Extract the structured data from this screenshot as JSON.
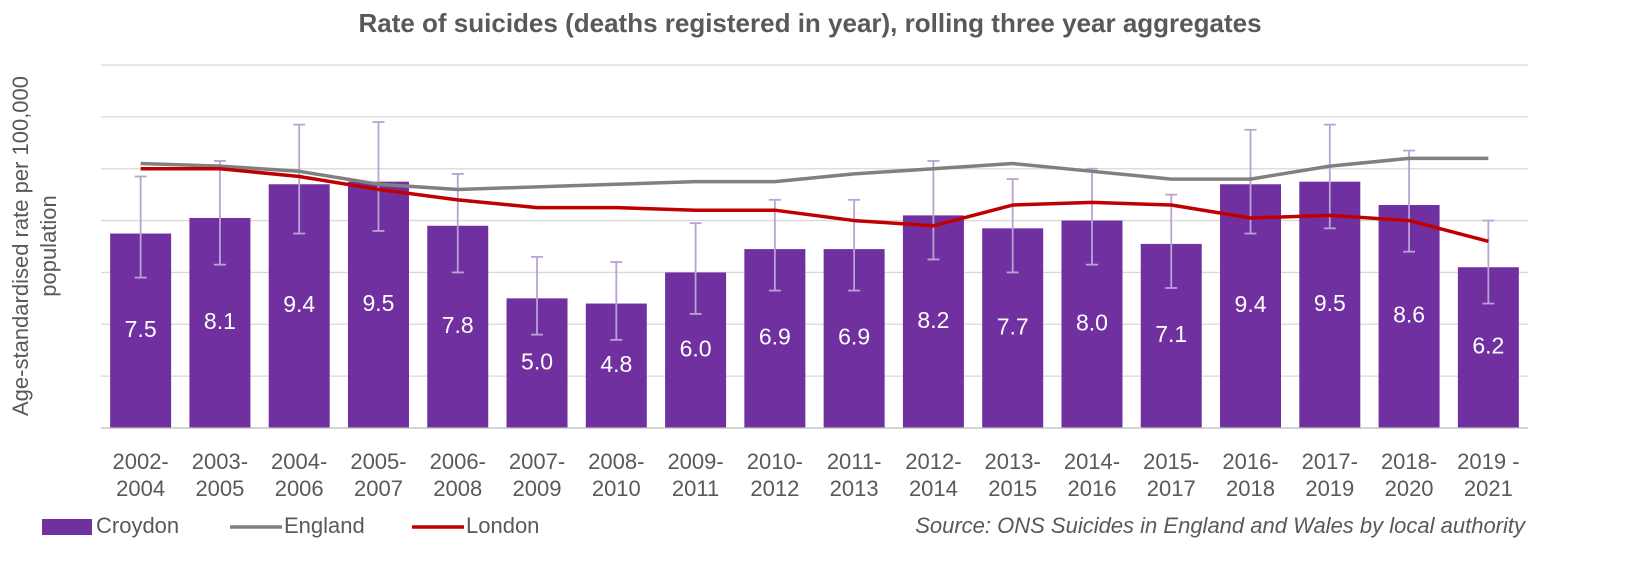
{
  "chart_data": {
    "type": "bar",
    "title": "Rate of suicides (deaths registered in year), rolling three year aggregates",
    "y_label": [
      "Age-standardised rate per 100,000",
      "population"
    ],
    "source": "Source: ONS Suicides in England and Wales by local authority",
    "categories": [
      [
        "2002-",
        "2004"
      ],
      [
        "2003-",
        "2005"
      ],
      [
        "2004-",
        "2006"
      ],
      [
        "2005-",
        "2007"
      ],
      [
        "2006-",
        "2008"
      ],
      [
        "2007-",
        "2009"
      ],
      [
        "2008-",
        "2010"
      ],
      [
        "2009-",
        "2011"
      ],
      [
        "2010-",
        "2012"
      ],
      [
        "2011-",
        "2013"
      ],
      [
        "2012-",
        "2014"
      ],
      [
        "2013-",
        "2015"
      ],
      [
        "2014-",
        "2016"
      ],
      [
        "2015-",
        "2017"
      ],
      [
        "2016-",
        "2018"
      ],
      [
        "2017-",
        "2019"
      ],
      [
        "2018-",
        "2020"
      ],
      [
        "2019 -",
        "2021"
      ]
    ],
    "ylim": [
      0,
      14
    ],
    "yticks": [
      0,
      2,
      4,
      6,
      8,
      10,
      12,
      14
    ],
    "grid": true,
    "legend": "bottom-left",
    "series": [
      {
        "name": "Croydon",
        "type": "bar",
        "color": "#7030a0",
        "values": [
          7.5,
          8.1,
          9.4,
          9.5,
          7.8,
          5.0,
          4.8,
          6.0,
          6.9,
          6.9,
          8.2,
          7.7,
          8.0,
          7.1,
          9.4,
          9.5,
          8.6,
          6.2
        ],
        "value_labels": [
          "7.5",
          "8.1",
          "9.4",
          "9.5",
          "7.8",
          "5.0",
          "4.8",
          "6.0",
          "6.9",
          "6.9",
          "8.2",
          "7.7",
          "8.0",
          "7.1",
          "9.4",
          "9.5",
          "8.6",
          "6.2"
        ],
        "ci_lower": [
          5.8,
          6.3,
          7.5,
          7.6,
          6.0,
          3.6,
          3.4,
          4.4,
          5.3,
          5.3,
          6.5,
          6.0,
          6.3,
          5.4,
          7.5,
          7.7,
          6.8,
          4.8
        ],
        "ci_upper": [
          9.7,
          10.3,
          11.7,
          11.8,
          9.8,
          6.6,
          6.4,
          7.9,
          8.8,
          8.8,
          10.3,
          9.6,
          10.0,
          9.0,
          11.5,
          11.7,
          10.7,
          8.0
        ],
        "error_color": "#b9a3d3"
      },
      {
        "name": "England",
        "type": "line",
        "color": "#808080",
        "values": [
          10.2,
          10.1,
          9.9,
          9.4,
          9.2,
          9.3,
          9.4,
          9.5,
          9.5,
          9.8,
          10.0,
          10.2,
          9.9,
          9.6,
          9.6,
          10.1,
          10.4,
          10.4
        ]
      },
      {
        "name": "London",
        "type": "line",
        "color": "#c00000",
        "values": [
          10.0,
          10.0,
          9.7,
          9.2,
          8.8,
          8.5,
          8.5,
          8.4,
          8.4,
          8.0,
          7.8,
          8.6,
          8.7,
          8.6,
          8.1,
          8.2,
          8.0,
          7.2
        ]
      }
    ]
  }
}
